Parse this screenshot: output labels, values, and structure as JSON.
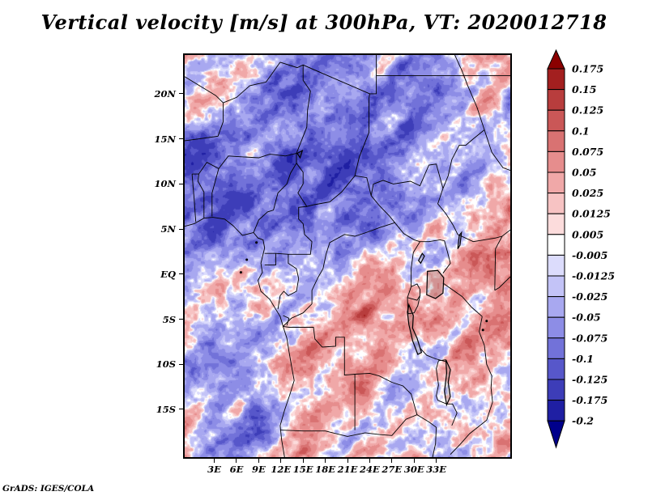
{
  "title": "Vertical velocity [m/s] at 300hPa, VT: 2020012718",
  "footer": "GrADS: IGES/COLA",
  "chart_data": {
    "type": "heatmap",
    "title": "Vertical velocity [m/s] at 300hPa, VT: 2020012718",
    "variable": "Vertical velocity",
    "units": "m/s",
    "pressure_level": "300hPa",
    "valid_time": "2020012718",
    "source_credit": "GrADS: IGES/COLA",
    "grid": false,
    "legend_position": "right",
    "lon_range": [
      -1,
      43
    ],
    "lat_range": [
      -20.3,
      24.3
    ],
    "x_tick_labels": [
      "3E",
      "6E",
      "9E",
      "12E",
      "15E",
      "18E",
      "21E",
      "24E",
      "27E",
      "30E",
      "33E"
    ],
    "x_tick_lons": [
      3,
      6,
      9,
      12,
      15,
      18,
      21,
      24,
      27,
      30,
      33
    ],
    "y_tick_labels": [
      "20N",
      "15N",
      "10N",
      "5N",
      "EQ",
      "5S",
      "10S",
      "15S"
    ],
    "y_tick_lats": [
      20,
      15,
      10,
      5,
      0,
      -5,
      -10,
      -15
    ],
    "colorbar": {
      "labels": [
        "0.175",
        "0.15",
        "0.125",
        "0.1",
        "0.075",
        "0.05",
        "0.025",
        "0.0125",
        "0.005",
        "-0.005",
        "-0.0125",
        "-0.025",
        "-0.05",
        "-0.075",
        "-0.1",
        "-0.125",
        "-0.175",
        "-0.2"
      ],
      "levels_ascending": [
        -0.2,
        -0.175,
        -0.125,
        -0.1,
        -0.075,
        -0.05,
        -0.025,
        -0.0125,
        -0.005,
        0.005,
        0.0125,
        0.025,
        0.05,
        0.075,
        0.1,
        0.125,
        0.15,
        0.175
      ],
      "colors_ascending": [
        "#00008b",
        "#1f1fa3",
        "#3d3db8",
        "#5757ca",
        "#7272d9",
        "#8d8de6",
        "#a8a8f0",
        "#c3c3f7",
        "#dcdcfc",
        "#ffffff",
        "#fcdcdc",
        "#f7c3c3",
        "#f0a8a8",
        "#e68d8d",
        "#d97272",
        "#ca5757",
        "#b83d3d",
        "#a31f1f",
        "#8b0000"
      ]
    },
    "map_borders": [
      [
        [
          -1,
          5.3
        ],
        [
          0.3,
          5.6
        ],
        [
          1.6,
          6.2
        ],
        [
          2.8,
          6.3
        ],
        [
          4.4,
          6.1
        ],
        [
          5.5,
          5.4
        ],
        [
          6.8,
          4.3
        ],
        [
          8.3,
          4.6
        ],
        [
          8.9,
          4.0
        ],
        [
          9.6,
          3.8
        ],
        [
          9.8,
          2.9
        ],
        [
          9.3,
          1.2
        ],
        [
          9.5,
          0.2
        ],
        [
          8.9,
          -0.7
        ],
        [
          9.3,
          -1.9
        ],
        [
          10.5,
          -2.8
        ],
        [
          11.3,
          -3.9
        ],
        [
          11.9,
          -4.7
        ],
        [
          12.3,
          -5.8
        ],
        [
          12.8,
          -7.1
        ],
        [
          13.1,
          -8.6
        ],
        [
          13.5,
          -10.5
        ],
        [
          13.8,
          -11.8
        ],
        [
          13.2,
          -13.4
        ],
        [
          12.5,
          -15.1
        ],
        [
          11.9,
          -16.8
        ],
        [
          12.1,
          -18.4
        ],
        [
          12.5,
          -20.3
        ]
      ],
      [
        [
          0.5,
          5.8
        ],
        [
          0.3,
          8.1
        ],
        [
          0,
          11.1
        ]
      ],
      [
        [
          1.6,
          6.2
        ],
        [
          1.6,
          9.1
        ],
        [
          0.8,
          10.3
        ],
        [
          0.9,
          11.1
        ]
      ],
      [
        [
          2.7,
          6.4
        ],
        [
          2.7,
          9
        ],
        [
          3.6,
          11.7
        ]
      ],
      [
        [
          0,
          11.1
        ],
        [
          0.9,
          11.1
        ],
        [
          2,
          12.4
        ],
        [
          3.6,
          11.7
        ],
        [
          4.9,
          13.1
        ],
        [
          6.9,
          13
        ],
        [
          9,
          12.9
        ],
        [
          10.5,
          13.3
        ],
        [
          12.6,
          13.1
        ],
        [
          14.1,
          13.4
        ]
      ],
      [
        [
          -1,
          14.8
        ],
        [
          1,
          15
        ],
        [
          3.5,
          15.3
        ],
        [
          4.2,
          16.9
        ],
        [
          4.2,
          19
        ],
        [
          3.2,
          19.8
        ],
        [
          1.2,
          20.8
        ],
        [
          -1,
          21.9
        ]
      ],
      [
        [
          4.2,
          19
        ],
        [
          6,
          19.6
        ],
        [
          7.8,
          20.9
        ],
        [
          10,
          21.3
        ],
        [
          11.9,
          23.5
        ]
      ],
      [
        [
          11.9,
          23.5
        ],
        [
          14.2,
          22.9
        ],
        [
          15,
          23.2
        ],
        [
          24,
          20
        ]
      ],
      [
        [
          14.1,
          13.4
        ],
        [
          15.5,
          16.3
        ],
        [
          15.6,
          18.2
        ],
        [
          16,
          20.3
        ],
        [
          15,
          21.5
        ],
        [
          15,
          23.2
        ]
      ],
      [
        [
          8.3,
          4.6
        ],
        [
          9,
          6
        ],
        [
          10.2,
          6.9
        ],
        [
          11,
          7.1
        ],
        [
          11.6,
          9
        ],
        [
          12.8,
          10
        ],
        [
          13.3,
          11.2
        ],
        [
          14.1,
          12.3
        ],
        [
          14.1,
          13.4
        ]
      ],
      [
        [
          14.1,
          12.3
        ],
        [
          15,
          11.3
        ],
        [
          15,
          10
        ],
        [
          14.3,
          9
        ],
        [
          15.5,
          7.5
        ],
        [
          16.5,
          7.7
        ],
        [
          18.6,
          8
        ],
        [
          20.2,
          9.1
        ],
        [
          22,
          10.9
        ],
        [
          23.6,
          10.7
        ],
        [
          24.2,
          8.7
        ]
      ],
      [
        [
          22,
          10.9
        ],
        [
          22.6,
          13
        ],
        [
          23.9,
          15.7
        ],
        [
          23.9,
          19.5
        ],
        [
          24,
          20
        ],
        [
          24.9,
          20
        ],
        [
          24.9,
          22
        ],
        [
          43,
          22
        ]
      ],
      [
        [
          24.9,
          22
        ],
        [
          24.9,
          24.3
        ]
      ],
      [
        [
          24.2,
          8.7
        ],
        [
          25.3,
          7.6
        ],
        [
          26.6,
          6.5
        ],
        [
          27.4,
          5.7
        ],
        [
          25.5,
          5.2
        ],
        [
          23.5,
          4.6
        ],
        [
          22,
          4.2
        ],
        [
          20.6,
          4.4
        ],
        [
          18.6,
          3.5
        ],
        [
          18.1,
          2.2
        ],
        [
          17.7,
          0.6
        ],
        [
          17,
          -0.4
        ],
        [
          16.2,
          -1.8
        ],
        [
          16.2,
          -3.3
        ],
        [
          15,
          -4.3
        ],
        [
          13.4,
          -4.9
        ],
        [
          12.3,
          -5.8
        ]
      ],
      [
        [
          9.8,
          2.3
        ],
        [
          11.3,
          2.3
        ],
        [
          13,
          2.2
        ],
        [
          14.5,
          2.2
        ],
        [
          16,
          2.2
        ],
        [
          16.2,
          3.6
        ],
        [
          15.2,
          4.4
        ],
        [
          15,
          5.6
        ],
        [
          14.4,
          6.1
        ],
        [
          14.4,
          7.4
        ],
        [
          15.5,
          7.5
        ]
      ],
      [
        [
          9.8,
          1
        ],
        [
          11.3,
          1
        ],
        [
          11.3,
          2.3
        ]
      ],
      [
        [
          13,
          2.2
        ],
        [
          13,
          1.2
        ],
        [
          14.1,
          0.6
        ],
        [
          14.4,
          -0.5
        ],
        [
          14.1,
          -1.9
        ],
        [
          13,
          -2.4
        ],
        [
          12.4,
          -1.9
        ],
        [
          11.9,
          -2.4
        ],
        [
          11.6,
          -3.9
        ]
      ],
      [
        [
          12.3,
          -5.8
        ],
        [
          13.1,
          -5.9
        ],
        [
          16.4,
          -5.9
        ],
        [
          16.6,
          -7.2
        ],
        [
          17.6,
          -8.1
        ],
        [
          19.4,
          -8
        ],
        [
          19.4,
          -7
        ],
        [
          20.6,
          -7
        ],
        [
          20.6,
          -11.2
        ],
        [
          22,
          -11.1
        ]
      ],
      [
        [
          12.3,
          -4.6
        ],
        [
          13.1,
          -4.9
        ],
        [
          12.8,
          -5.7
        ]
      ],
      [
        [
          22,
          -11.1
        ],
        [
          24,
          -11
        ],
        [
          25.3,
          -11.3
        ],
        [
          27,
          -12
        ],
        [
          28.5,
          -12.4
        ],
        [
          29.6,
          -13.3
        ],
        [
          30.4,
          -15.6
        ]
      ],
      [
        [
          22,
          -11.1
        ],
        [
          22,
          -17.3
        ]
      ],
      [
        [
          11.9,
          -17.3
        ],
        [
          15,
          -17.4
        ],
        [
          18,
          -17.4
        ],
        [
          21,
          -18
        ],
        [
          23.4,
          -17.6
        ],
        [
          25.3,
          -17.8
        ],
        [
          27,
          -17.9
        ],
        [
          28.9,
          -16.1
        ],
        [
          30.4,
          -15.6
        ],
        [
          32,
          -16.4
        ],
        [
          33,
          -17
        ],
        [
          32.9,
          -18.8
        ],
        [
          32.5,
          -20.3
        ]
      ],
      [
        [
          27.4,
          5.7
        ],
        [
          28.6,
          4.5
        ],
        [
          30,
          3.8
        ],
        [
          30.8,
          3.6
        ],
        [
          32,
          3.6
        ],
        [
          33.5,
          3.8
        ],
        [
          34.1,
          3.7
        ],
        [
          34.5,
          2.5
        ],
        [
          34.9,
          1.2
        ],
        [
          33.9,
          0.1
        ]
      ],
      [
        [
          30.8,
          3.6
        ],
        [
          29.9,
          2.4
        ],
        [
          29.6,
          0.6
        ],
        [
          29.6,
          -1.4
        ]
      ],
      [
        [
          29.6,
          -1.4
        ],
        [
          30.4,
          -1.1
        ],
        [
          30.8,
          -1.7
        ],
        [
          30.8,
          -2.4
        ],
        [
          30.4,
          -2.9
        ],
        [
          29.1,
          -2.6
        ],
        [
          29.6,
          -1.4
        ]
      ],
      [
        [
          29.1,
          -2.6
        ],
        [
          29.2,
          -4.4
        ],
        [
          30,
          -4.3
        ],
        [
          30.5,
          -3.5
        ],
        [
          30.8,
          -2.4
        ]
      ],
      [
        [
          24.2,
          8.7
        ],
        [
          24.5,
          10
        ],
        [
          25.8,
          10.4
        ],
        [
          27.2,
          10
        ],
        [
          29.5,
          10.3
        ],
        [
          30.8,
          9.8
        ],
        [
          32,
          12.1
        ],
        [
          33,
          12.2
        ],
        [
          33.9,
          9.5
        ]
      ],
      [
        [
          33.9,
          9.5
        ],
        [
          33.2,
          7.8
        ],
        [
          34.3,
          6.7
        ],
        [
          35.3,
          5.4
        ],
        [
          35.9,
          4.4
        ],
        [
          38,
          3.6
        ],
        [
          41,
          4
        ],
        [
          41.9,
          4.2
        ],
        [
          43,
          4.9
        ]
      ],
      [
        [
          33.9,
          9.5
        ],
        [
          34.6,
          10.9
        ],
        [
          35.1,
          12.7
        ],
        [
          36.1,
          14.3
        ],
        [
          37,
          14.3
        ],
        [
          38,
          15
        ],
        [
          39.5,
          16
        ]
      ],
      [
        [
          40.9,
          -1.8
        ],
        [
          41,
          2.8
        ],
        [
          41.9,
          4.2
        ]
      ],
      [
        [
          33.9,
          -1
        ],
        [
          36.5,
          -2.5
        ],
        [
          37.8,
          -3.7
        ],
        [
          39.2,
          -4.7
        ]
      ],
      [
        [
          39.2,
          -4.7
        ],
        [
          38.8,
          -6.4
        ],
        [
          39.5,
          -7.9
        ],
        [
          39.8,
          -10
        ],
        [
          40.5,
          -11.3
        ],
        [
          40.4,
          -12.6
        ],
        [
          40.6,
          -14.2
        ],
        [
          39.8,
          -16.2
        ],
        [
          37.5,
          -17.7
        ],
        [
          36.2,
          -18.9
        ],
        [
          34.9,
          -20
        ]
      ],
      [
        [
          43,
          -0.3
        ],
        [
          41.5,
          -1.5
        ],
        [
          40.9,
          -1.8
        ]
      ],
      [
        [
          30.8,
          -8.2
        ],
        [
          31.7,
          -9
        ],
        [
          32.9,
          -9.4
        ],
        [
          34.3,
          -9.7
        ]
      ],
      [
        [
          34.3,
          -9.5
        ],
        [
          33.3,
          -9.6
        ],
        [
          33,
          -10.5
        ],
        [
          33.3,
          -12.3
        ],
        [
          33,
          -13.5
        ],
        [
          33.2,
          -14
        ],
        [
          34.4,
          -14.4
        ],
        [
          35.2,
          -14.4
        ],
        [
          35.8,
          -15.4
        ],
        [
          35.1,
          -16.8
        ]
      ],
      [
        [
          35.5,
          24.3
        ],
        [
          36.5,
          22.5
        ],
        [
          37.2,
          21
        ],
        [
          38.5,
          18.5
        ],
        [
          39.5,
          16
        ],
        [
          40.5,
          13.5
        ],
        [
          42,
          11.8
        ],
        [
          43,
          11.5
        ]
      ]
    ],
    "lakes": [
      [
        [
          31.8,
          0.3
        ],
        [
          33.2,
          0.4
        ],
        [
          34,
          -0.4
        ],
        [
          33.9,
          -2.1
        ],
        [
          32.9,
          -2.7
        ],
        [
          31.7,
          -2.3
        ],
        [
          31.8,
          0.3
        ]
      ],
      [
        [
          29.3,
          -3.4
        ],
        [
          29.9,
          -4.6
        ],
        [
          29.8,
          -6
        ],
        [
          30.4,
          -7.1
        ],
        [
          31,
          -8.7
        ],
        [
          30.5,
          -8.9
        ],
        [
          29.8,
          -7.4
        ],
        [
          29.3,
          -5.6
        ],
        [
          29.1,
          -4.2
        ],
        [
          29.3,
          -3.4
        ]
      ],
      [
        [
          34.3,
          -9.5
        ],
        [
          34.9,
          -10.6
        ],
        [
          34.6,
          -12
        ],
        [
          34.9,
          -13.6
        ],
        [
          34.4,
          -14.5
        ],
        [
          34.1,
          -13
        ],
        [
          34.4,
          -11
        ],
        [
          34.3,
          -9.5
        ]
      ],
      [
        [
          30.9,
          1.2
        ],
        [
          31.4,
          2
        ],
        [
          31.1,
          2.3
        ],
        [
          30.6,
          1.5
        ],
        [
          30.9,
          1.2
        ]
      ],
      [
        [
          35.9,
          2.8
        ],
        [
          36.1,
          4.3
        ],
        [
          36.4,
          4.6
        ],
        [
          36.2,
          3.2
        ],
        [
          35.9,
          2.8
        ]
      ],
      [
        [
          14.2,
          13.4
        ],
        [
          14.9,
          13.7
        ],
        [
          14.6,
          12.9
        ],
        [
          14.2,
          13.4
        ]
      ]
    ],
    "islands": [
      [
        8.7,
        3.5
      ],
      [
        6.6,
        0.2
      ],
      [
        7.4,
        1.6
      ],
      [
        39.8,
        -5.2
      ],
      [
        39.3,
        -6.2
      ]
    ]
  }
}
